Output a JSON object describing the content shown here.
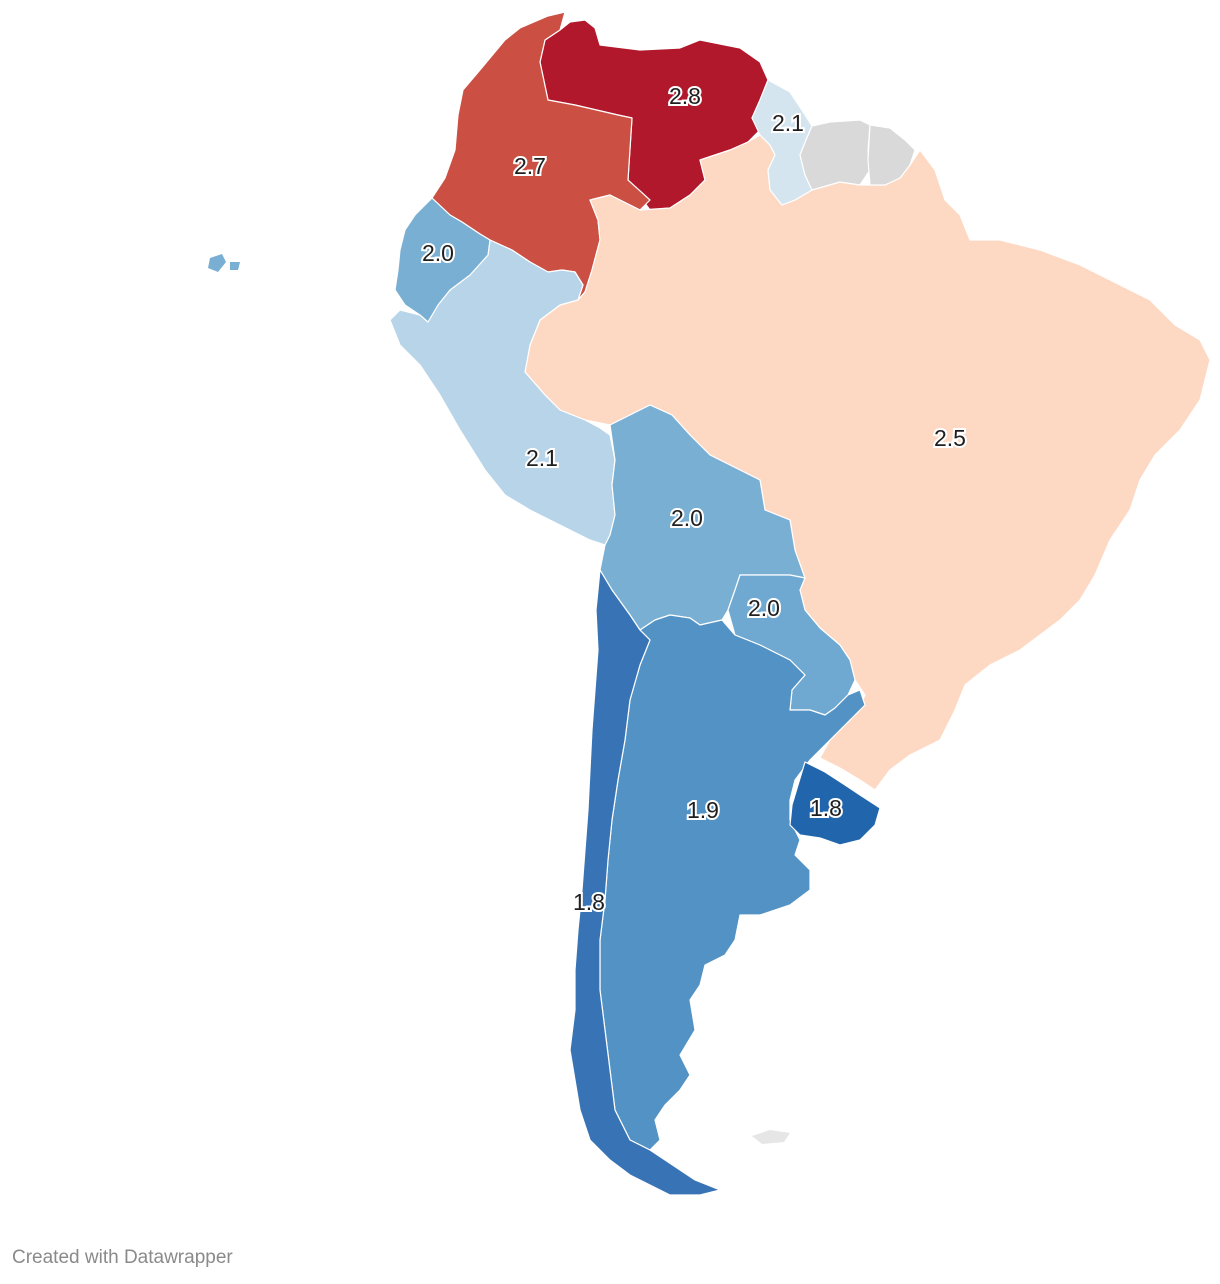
{
  "map": {
    "type": "choropleth",
    "region": "South America",
    "colors": {
      "no_data": "#d9d9d9",
      "scale": [
        "#2166ac",
        "#3874b5",
        "#5392c4",
        "#79afd3",
        "#b7d4e8",
        "#d4e5f0",
        "#fdd9c4",
        "#cb5043",
        "#b2182b"
      ]
    },
    "countries": [
      {
        "id": "venezuela",
        "value": "2.8",
        "color": "#b2182b"
      },
      {
        "id": "colombia",
        "value": "2.7",
        "color": "#cb5043"
      },
      {
        "id": "brazil",
        "value": "2.5",
        "color": "#fdd9c4"
      },
      {
        "id": "guyana",
        "value": "2.1",
        "color": "#d4e5f0"
      },
      {
        "id": "peru",
        "value": "2.1",
        "color": "#b7d4e8"
      },
      {
        "id": "ecuador",
        "value": "2.0",
        "color": "#79afd3"
      },
      {
        "id": "bolivia",
        "value": "2.0",
        "color": "#79afd3"
      },
      {
        "id": "paraguay",
        "value": "2.0",
        "color": "#6fa9d1"
      },
      {
        "id": "argentina",
        "value": "1.9",
        "color": "#5392c4"
      },
      {
        "id": "chile",
        "value": "1.8",
        "color": "#3874b5"
      },
      {
        "id": "uruguay",
        "value": "1.8",
        "color": "#2166ac"
      },
      {
        "id": "suriname",
        "value": null,
        "color": "#d9d9d9"
      },
      {
        "id": "french-guiana",
        "value": null,
        "color": "#d9d9d9"
      }
    ]
  },
  "footer": {
    "credit": "Created with Datawrapper"
  }
}
